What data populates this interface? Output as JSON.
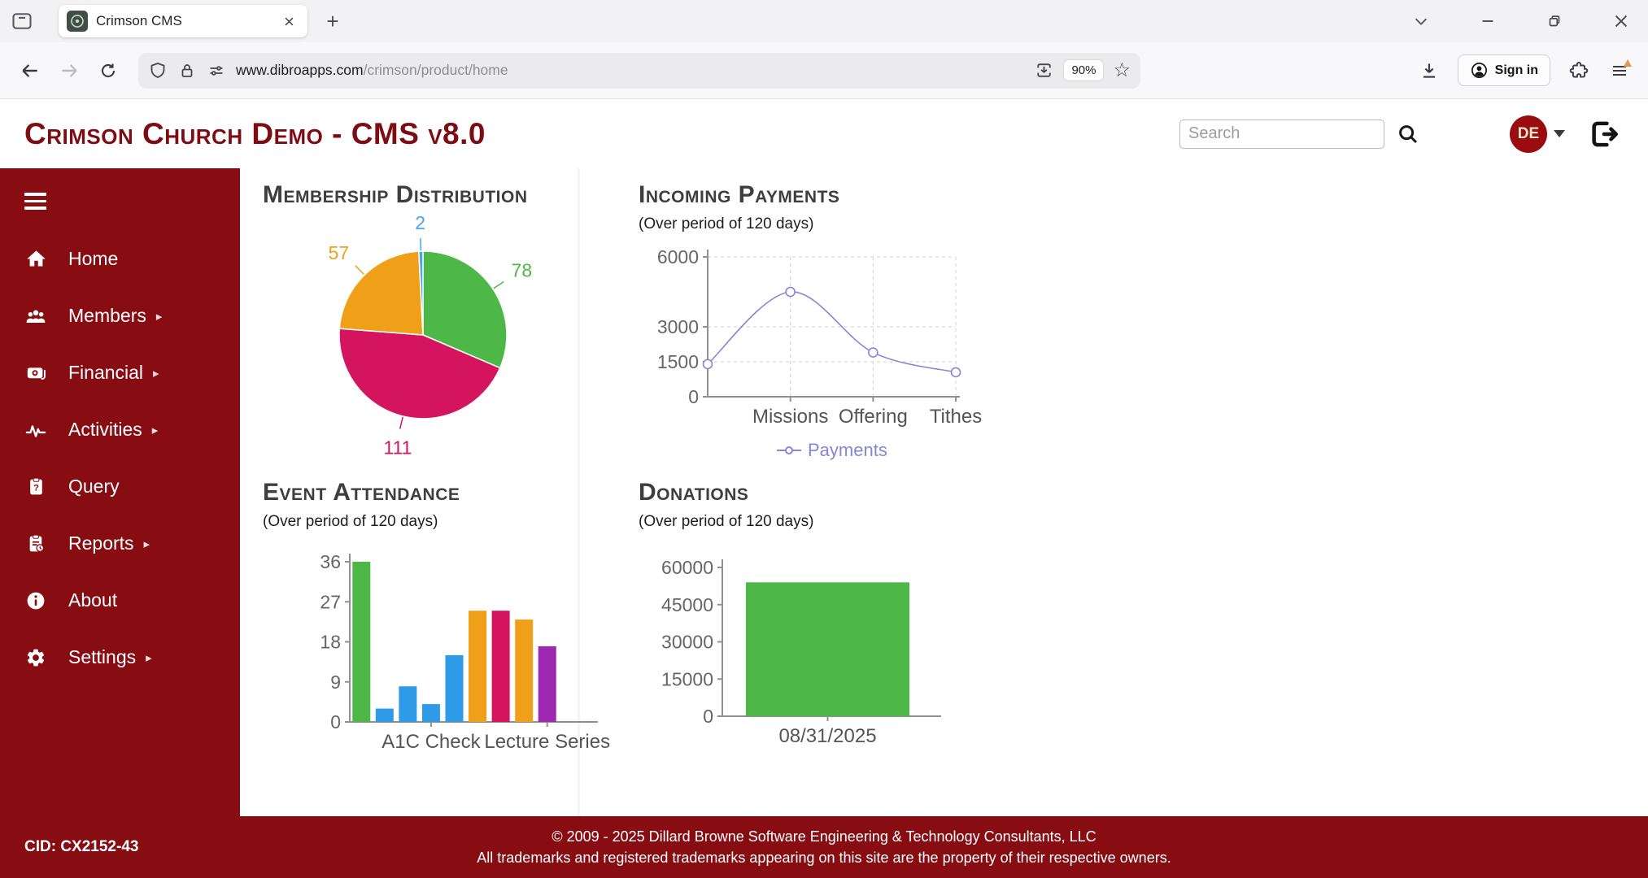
{
  "browser": {
    "tab": {
      "title": "Crimson CMS"
    },
    "url": {
      "host": "www.dibroapps.com",
      "path": "/crimson/product/home"
    },
    "zoom_level": "90%",
    "sign_in_label": "Sign in"
  },
  "header": {
    "title": "Crimson Church Demo - CMS v8.0",
    "search_placeholder": "Search",
    "avatar_initials": "DE"
  },
  "sidebar": {
    "items": [
      {
        "label": "Home",
        "icon": "home-icon",
        "has_submenu": false
      },
      {
        "label": "Members",
        "icon": "members-icon",
        "has_submenu": true
      },
      {
        "label": "Financial",
        "icon": "financial-icon",
        "has_submenu": true
      },
      {
        "label": "Activities",
        "icon": "activities-icon",
        "has_submenu": true
      },
      {
        "label": "Query",
        "icon": "query-icon",
        "has_submenu": false
      },
      {
        "label": "Reports",
        "icon": "reports-icon",
        "has_submenu": true
      },
      {
        "label": "About",
        "icon": "about-icon",
        "has_submenu": false
      },
      {
        "label": "Settings",
        "icon": "settings-icon",
        "has_submenu": true
      }
    ]
  },
  "chart_data": [
    {
      "id": "membership",
      "type": "pie",
      "title": "Membership Distribution",
      "slices": [
        {
          "value": 78,
          "color": "#4db848"
        },
        {
          "value": 111,
          "color": "#d4145f"
        },
        {
          "value": 57,
          "color": "#f0a018"
        },
        {
          "value": 2,
          "color": "#4aa4ef"
        }
      ],
      "start_angle": "top",
      "direction": "clockwise"
    },
    {
      "id": "payments",
      "type": "line",
      "title": "Incoming Payments",
      "subtitle": "(Over period of 120 days)",
      "categories": [
        "",
        "Missions",
        "Offering",
        "Tithes"
      ],
      "values": [
        1400,
        4500,
        1900,
        1050
      ],
      "yticks": [
        0,
        1500,
        3000,
        6000
      ],
      "ylim": [
        0,
        6000
      ],
      "line_color": "#8884d8",
      "legend": [
        "Payments"
      ],
      "grid": "dashed"
    },
    {
      "id": "attendance",
      "type": "bar",
      "title": "Event Attendance",
      "subtitle": "(Over period of 120 days)",
      "values": [
        36,
        3,
        8,
        4,
        15,
        25,
        25,
        23,
        17
      ],
      "colors": [
        "#4db848",
        "#2e9be8",
        "#2e9be8",
        "#2e9be8",
        "#2e9be8",
        "#f0a018",
        "#d4145f",
        "#f0a018",
        "#9c27b0"
      ],
      "yticks": [
        0,
        9,
        18,
        27,
        36
      ],
      "ylim": [
        0,
        36
      ],
      "x_tick_labels": [
        {
          "index": 3,
          "label": "A1C Check"
        },
        {
          "index": 8,
          "label": "Lecture Series"
        }
      ]
    },
    {
      "id": "donations",
      "type": "bar",
      "title": "Donations",
      "subtitle": "(Over period of 120 days)",
      "values": [
        54000
      ],
      "colors": [
        "#4db848"
      ],
      "yticks": [
        0,
        15000,
        30000,
        45000,
        60000
      ],
      "ylim": [
        0,
        60000
      ],
      "x_tick_labels": [
        {
          "index": 0,
          "label": "08/31/2025"
        }
      ]
    }
  ],
  "footer": {
    "cid": "CID: CX2152-43",
    "line1": "© 2009 - 2025 Dillard Browne Software Engineering & Technology Consultants, LLC",
    "line2": "All trademarks and registered trademarks appearing on this site are the property of their respective owners."
  }
}
